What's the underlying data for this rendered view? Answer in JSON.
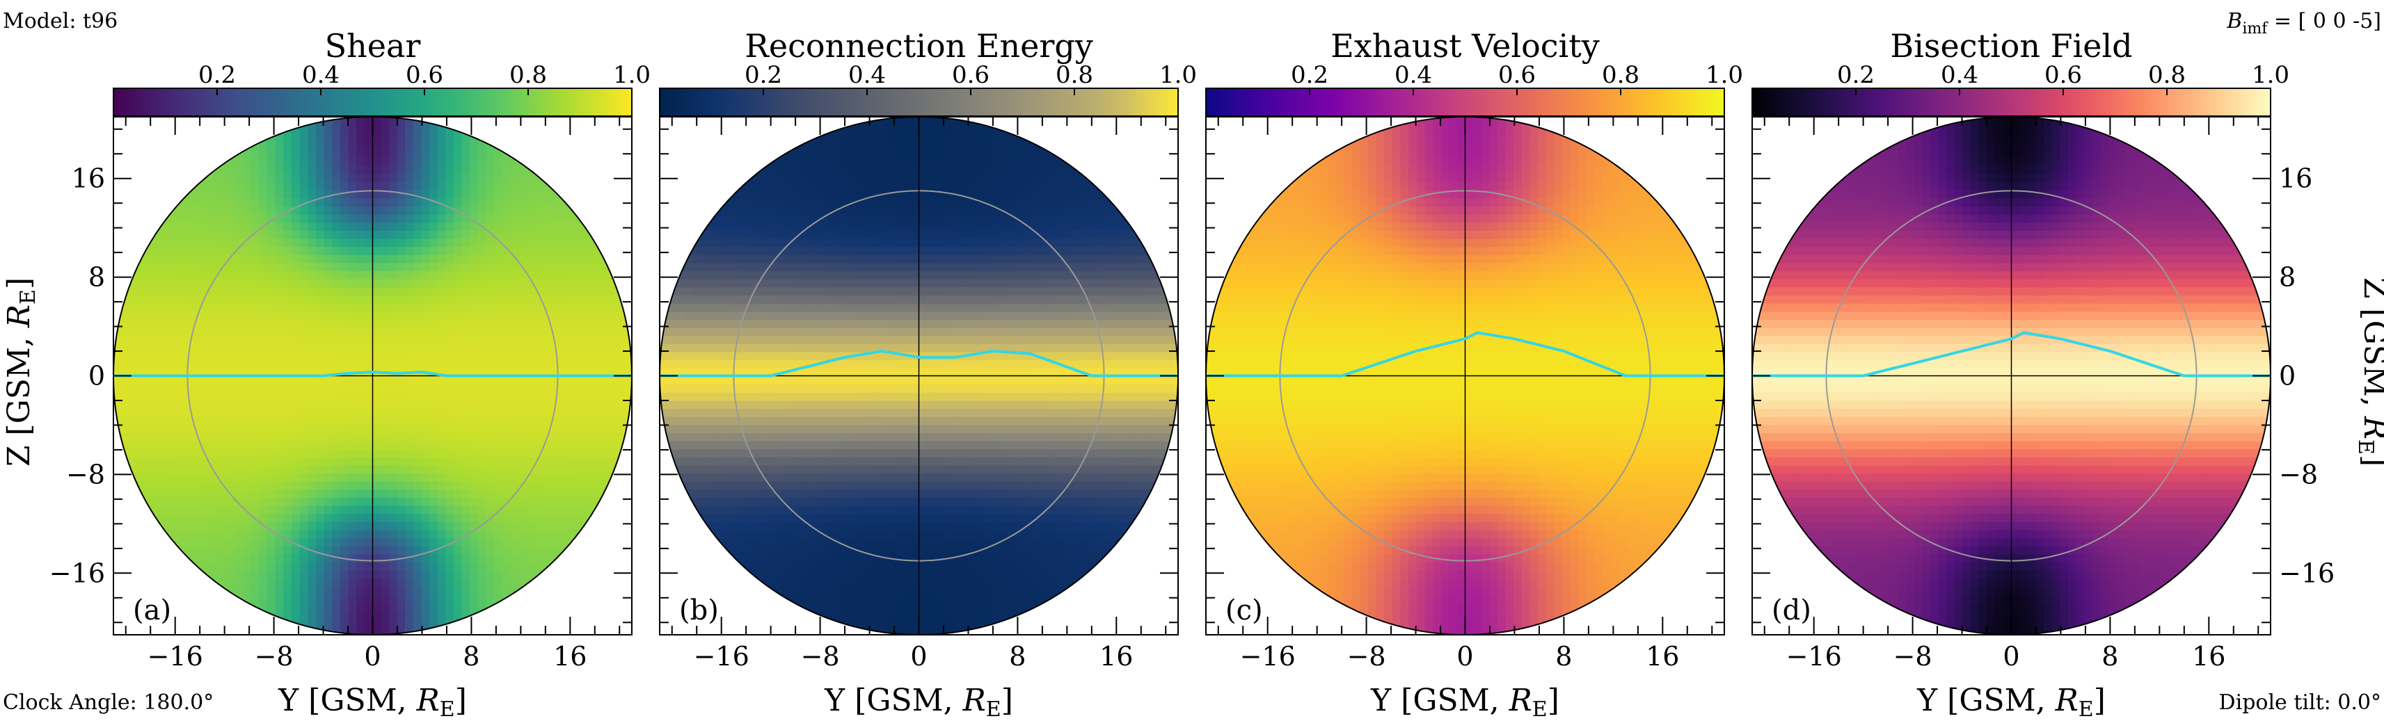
{
  "header": {
    "model": "Model: t96",
    "bimf_label": "B",
    "bimf_sub": "imf",
    "bimf_value": " = [ 0 0 -5]"
  },
  "footer": {
    "clock_angle": "Clock Angle: 180.0°",
    "dipole_tilt": "Dipole tilt: 0.0°"
  },
  "axes": {
    "x_label": "Y [GSM, ",
    "y_label": "Z [GSM, ",
    "unit_main": "R",
    "unit_sub": "E",
    "unit_close": "]",
    "xticks": [
      "−16",
      "−8",
      "0",
      "8",
      "16"
    ],
    "yticks": [
      "16",
      "8",
      "0",
      "−8",
      "−16"
    ],
    "cbar_ticks": [
      "0.2",
      "0.4",
      "0.6",
      "0.8",
      "1.0"
    ]
  },
  "colors": {
    "trace": "#33d6e6",
    "grid_circle": "#9a9a9a",
    "crosshair": "#000000"
  },
  "chart_data": [
    {
      "panel": "(a)",
      "title": "Shear",
      "type": "heatmap",
      "colormap": "viridis",
      "xlim": [
        -21,
        21
      ],
      "ylim": [
        -21,
        21
      ],
      "clim": [
        0,
        1
      ],
      "field": {
        "base": 0.78,
        "peak": 0.95,
        "valley": 0.05,
        "band_y": 8,
        "hole_x": 4,
        "hole_y": 16
      },
      "trace": {
        "x": [
          -21,
          -4,
          -2,
          0,
          2,
          4,
          6,
          21
        ],
        "y": [
          0,
          0,
          0.2,
          0.3,
          0.2,
          0.3,
          0,
          0
        ]
      }
    },
    {
      "panel": "(b)",
      "title": "Reconnection Energy",
      "type": "heatmap",
      "colormap": "cividis",
      "xlim": [
        -21,
        21
      ],
      "ylim": [
        -21,
        21
      ],
      "clim": [
        0,
        1
      ],
      "field": {
        "base": 0.1,
        "peak": 0.98,
        "valley": 0.05,
        "band_y": 5,
        "hole_x": 10,
        "hole_y": 15
      },
      "trace": {
        "x": [
          -21,
          -12,
          -6,
          -3,
          0,
          3,
          6,
          9,
          14,
          21
        ],
        "y": [
          0,
          0,
          1.5,
          2,
          1.5,
          1.5,
          2,
          1.8,
          0,
          0
        ]
      }
    },
    {
      "panel": "(c)",
      "title": "Exhaust Velocity",
      "type": "heatmap",
      "colormap": "plasma",
      "xlim": [
        -21,
        21
      ],
      "ylim": [
        -21,
        21
      ],
      "clim": [
        0,
        1
      ],
      "field": {
        "base": 0.78,
        "peak": 0.95,
        "valley": 0.35,
        "band_y": 7,
        "hole_x": 5,
        "hole_y": 16
      },
      "trace": {
        "x": [
          -21,
          -10,
          -4,
          -2,
          0,
          1,
          4,
          8,
          13,
          21
        ],
        "y": [
          0,
          0,
          2,
          2.5,
          3,
          3.5,
          3,
          2,
          0,
          0
        ]
      }
    },
    {
      "panel": "(d)",
      "title": "Bisection Field",
      "type": "heatmap",
      "colormap": "magma",
      "xlim": [
        -21,
        21
      ],
      "ylim": [
        -21,
        21
      ],
      "clim": [
        0,
        1
      ],
      "field": {
        "base": 0.35,
        "peak": 0.98,
        "valley": 0.03,
        "band_y": 6,
        "hole_x": 4,
        "hole_y": 18
      },
      "trace": {
        "x": [
          -21,
          -12,
          -6,
          -2,
          0,
          1,
          4,
          8,
          14,
          21
        ],
        "y": [
          0,
          0,
          1.5,
          2.5,
          3,
          3.5,
          3,
          2,
          0,
          0
        ]
      }
    }
  ]
}
